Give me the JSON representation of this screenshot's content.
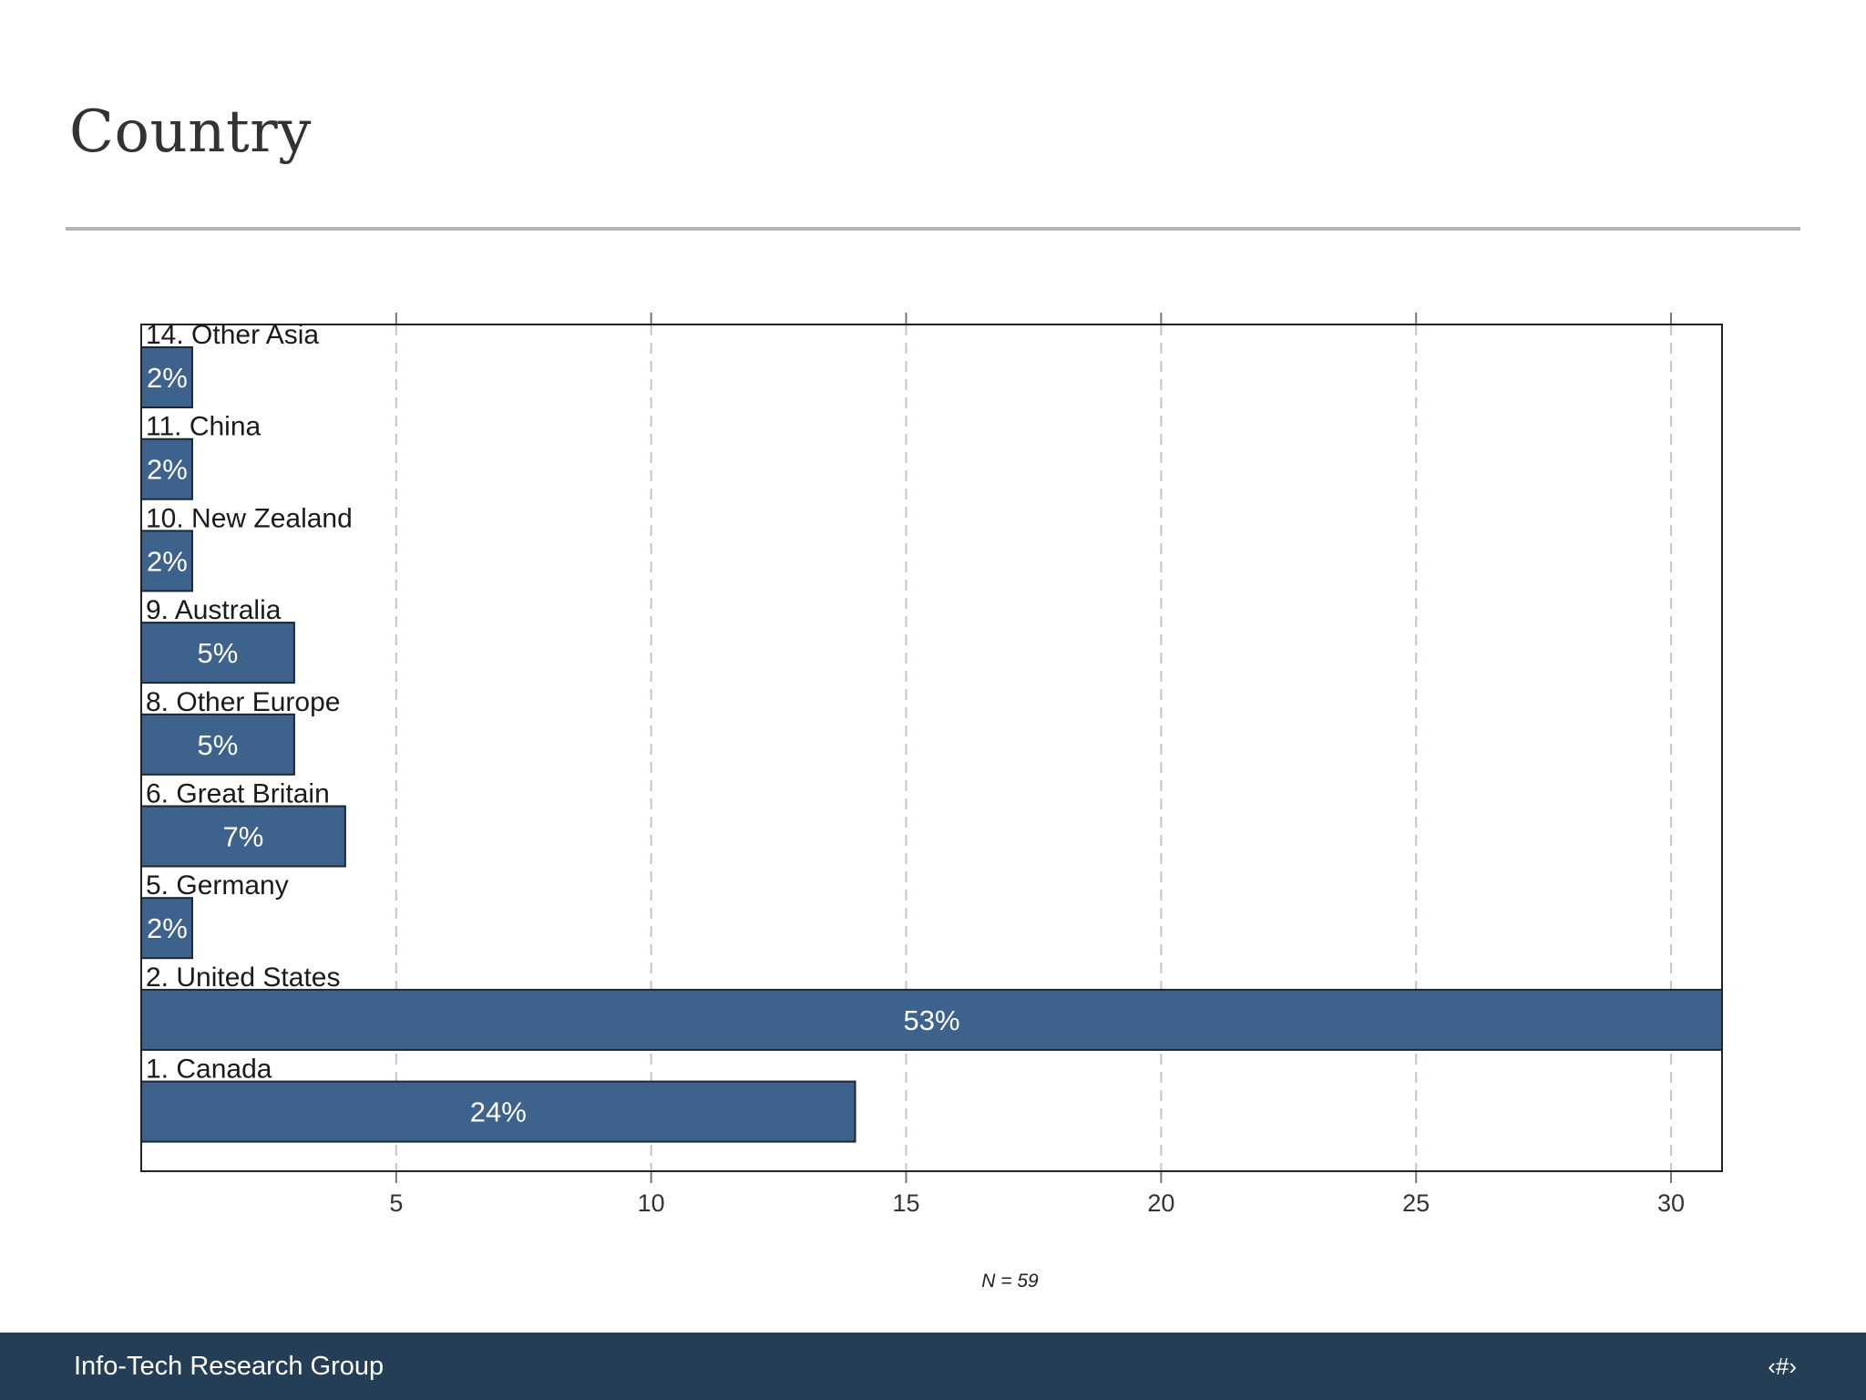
{
  "slide": {
    "title": "Country"
  },
  "footer": {
    "brand": "Info-Tech Research Group",
    "page_marker": "‹#›"
  },
  "colors": {
    "bar": "#3d628b",
    "footer": "#233e55",
    "grid": "#c9c2cc"
  },
  "chart_data": {
    "type": "bar",
    "orientation": "horizontal",
    "categories": [
      "14. Other Asia",
      "11. China",
      "10. New Zealand",
      "9. Australia",
      "8. Other Europe",
      "6. Great Britain",
      "5. Germany",
      "2. United States",
      "1. Canada"
    ],
    "values": [
      1,
      1,
      1,
      3,
      3,
      4,
      1,
      31,
      14
    ],
    "data_labels": [
      "2%",
      "2%",
      "2%",
      "5%",
      "5%",
      "7%",
      "2%",
      "53%",
      "24%"
    ],
    "xticks": [
      5,
      10,
      15,
      20,
      25,
      30
    ],
    "xlim": [
      0,
      31
    ],
    "grid": true,
    "note": "N = 59"
  }
}
